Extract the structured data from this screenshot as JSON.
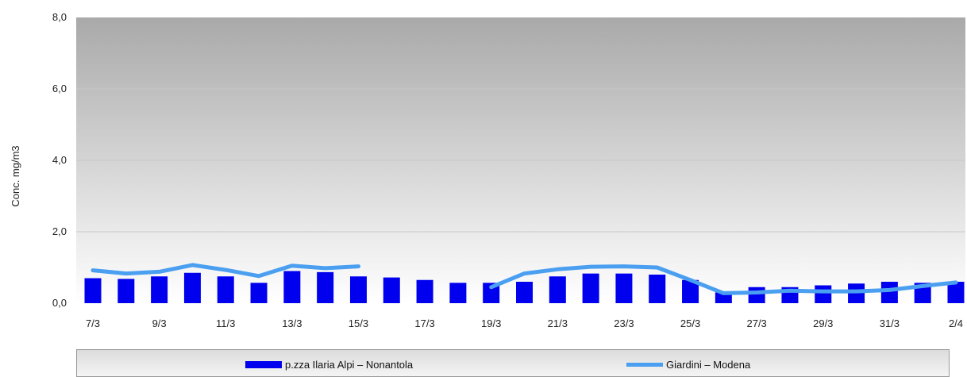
{
  "chart_data": {
    "type": "bar",
    "ylabel": "Conc. mg/m3",
    "ylim": [
      0,
      8
    ],
    "yticks": [
      "0,0",
      "2,0",
      "4,0",
      "6,0",
      "8,0"
    ],
    "categories": [
      "7/3",
      "8/3",
      "9/3",
      "10/3",
      "11/3",
      "12/3",
      "13/3",
      "14/3",
      "15/3",
      "16/3",
      "17/3",
      "18/3",
      "19/3",
      "20/3",
      "21/3",
      "22/3",
      "23/3",
      "24/3",
      "25/3",
      "26/3",
      "27/3",
      "28/3",
      "29/3",
      "30/3",
      "31/3",
      "1/4",
      "2/4"
    ],
    "xtick_labels": [
      "7/3",
      "9/3",
      "11/3",
      "13/3",
      "15/3",
      "17/3",
      "19/3",
      "21/3",
      "23/3",
      "25/3",
      "27/3",
      "29/3",
      "31/3",
      "2/4"
    ],
    "series": [
      {
        "name": "p.zza Ilaria Alpi – Nonantola",
        "type": "bar",
        "color": "#0000ee",
        "values": [
          0.7,
          0.68,
          0.75,
          0.85,
          0.75,
          0.57,
          0.9,
          0.87,
          0.75,
          0.72,
          0.65,
          0.57,
          0.57,
          0.6,
          0.75,
          0.83,
          0.83,
          0.8,
          0.65,
          0.3,
          0.45,
          0.45,
          0.5,
          0.55,
          0.6,
          0.57,
          0.6
        ]
      },
      {
        "name": "Giardini – Modena",
        "type": "line",
        "color": "#4a9ff0",
        "values": [
          0.92,
          0.83,
          0.88,
          1.07,
          0.93,
          0.76,
          1.05,
          0.98,
          1.03,
          null,
          null,
          null,
          0.45,
          0.83,
          0.95,
          1.02,
          1.03,
          1.0,
          0.65,
          0.28,
          0.3,
          0.35,
          0.33,
          0.33,
          0.37,
          0.48,
          0.58
        ]
      }
    ],
    "grid": true,
    "legend": "bottom"
  }
}
